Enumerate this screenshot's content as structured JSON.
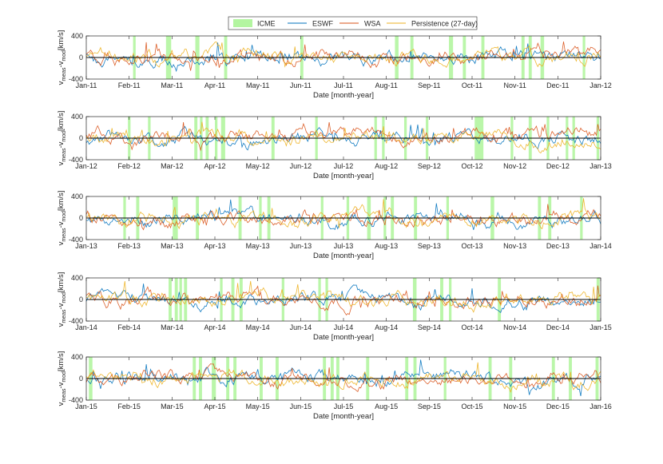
{
  "figure": {
    "legend": {
      "placement": "top-center",
      "entries": [
        {
          "name": "ICME",
          "kind": "band",
          "color": "#b3f5a0"
        },
        {
          "name": "ESWF",
          "kind": "line",
          "color": "#0072bd"
        },
        {
          "name": "WSA",
          "kind": "line",
          "color": "#d95319"
        },
        {
          "name": "Persistence (27-day)",
          "kind": "line",
          "color": "#edb120"
        }
      ]
    }
  },
  "chart_data": [
    {
      "type": "line",
      "title": "",
      "xlabel": "Date [month-year]",
      "ylabel_main": "v",
      "ylabel_sub1": "meas",
      "ylabel_mid": "-v",
      "ylabel_sub2": "mod",
      "ylabel_unit": "[km/s]",
      "ylim": [
        -400,
        400
      ],
      "yticks": [
        "-400",
        "0",
        "400"
      ],
      "xtick_labels": [
        "Jan-11",
        "Feb-11",
        "Mar-11",
        "Apr-11",
        "May-11",
        "Jun-11",
        "Jul-11",
        "Aug-11",
        "Sep-11",
        "Oct-11",
        "Nov-11",
        "Dec-11",
        "Jan-12"
      ],
      "icme_fractions": [
        [
          0.091,
          0.096
        ],
        [
          0.155,
          0.165
        ],
        [
          0.212,
          0.22
        ],
        [
          0.268,
          0.274
        ],
        [
          0.416,
          0.422
        ],
        [
          0.6,
          0.607
        ],
        [
          0.63,
          0.636
        ],
        [
          0.705,
          0.713
        ],
        [
          0.732,
          0.738
        ],
        [
          0.768,
          0.774
        ],
        [
          0.846,
          0.852
        ],
        [
          0.86,
          0.866
        ],
        [
          0.883,
          0.89
        ],
        [
          0.965,
          0.97
        ]
      ],
      "series": [
        {
          "name": "ESWF",
          "seed": 11
        },
        {
          "name": "WSA",
          "seed": 12
        },
        {
          "name": "Persistence (27-day)",
          "seed": 13
        }
      ]
    },
    {
      "type": "line",
      "title": "",
      "xlabel": "Date [month-year]",
      "ylabel_main": "v",
      "ylabel_sub1": "meas",
      "ylabel_mid": "-v",
      "ylabel_sub2": "mod",
      "ylabel_unit": "[km/s]",
      "ylim": [
        -400,
        400
      ],
      "yticks": [
        "-400",
        "0",
        "400"
      ],
      "xtick_labels": [
        "Jan-12",
        "Feb-12",
        "Mar-12",
        "Apr-12",
        "May-12",
        "Jun-12",
        "Jul-12",
        "Aug-12",
        "Sep-12",
        "Oct-12",
        "Nov-12",
        "Dec-12",
        "Jan-13"
      ],
      "icme_fractions": [
        [
          0.081,
          0.086
        ],
        [
          0.12,
          0.125
        ],
        [
          0.21,
          0.216
        ],
        [
          0.221,
          0.226
        ],
        [
          0.232,
          0.238
        ],
        [
          0.25,
          0.255
        ],
        [
          0.262,
          0.27
        ],
        [
          0.36,
          0.366
        ],
        [
          0.445,
          0.45
        ],
        [
          0.56,
          0.565
        ],
        [
          0.575,
          0.58
        ],
        [
          0.618,
          0.623
        ],
        [
          0.66,
          0.665
        ],
        [
          0.755,
          0.772
        ],
        [
          0.825,
          0.83
        ],
        [
          0.86,
          0.866
        ],
        [
          0.895,
          0.9
        ],
        [
          0.932,
          0.937
        ],
        [
          0.945,
          0.95
        ],
        [
          0.992,
          0.997
        ]
      ],
      "series": [
        {
          "name": "ESWF",
          "seed": 21
        },
        {
          "name": "WSA",
          "seed": 22
        },
        {
          "name": "Persistence (27-day)",
          "seed": 23
        }
      ]
    },
    {
      "type": "line",
      "title": "",
      "xlabel": "Date [month-year]",
      "ylabel_main": "v",
      "ylabel_sub1": "meas",
      "ylabel_mid": "-v",
      "ylabel_sub2": "mod",
      "ylabel_unit": "[km/s]",
      "ylim": [
        -400,
        400
      ],
      "yticks": [
        "-400",
        "0",
        "400"
      ],
      "xtick_labels": [
        "Jan-13",
        "Feb-13",
        "Mar-13",
        "Apr-13",
        "May-13",
        "Jun-13",
        "Jul-13",
        "Aug-13",
        "Sep-13",
        "Oct-13",
        "Nov-13",
        "Dec-13",
        "Jan-14"
      ],
      "icme_fractions": [
        [
          0.072,
          0.077
        ],
        [
          0.097,
          0.103
        ],
        [
          0.168,
          0.178
        ],
        [
          0.213,
          0.219
        ],
        [
          0.296,
          0.302
        ],
        [
          0.336,
          0.341
        ],
        [
          0.352,
          0.358
        ],
        [
          0.456,
          0.461
        ],
        [
          0.506,
          0.511
        ],
        [
          0.546,
          0.553
        ],
        [
          0.578,
          0.583
        ],
        [
          0.592,
          0.598
        ],
        [
          0.637,
          0.643
        ],
        [
          0.7,
          0.705
        ],
        [
          0.786,
          0.793
        ],
        [
          0.878,
          0.884
        ],
        [
          0.898,
          0.904
        ],
        [
          0.96,
          0.965
        ]
      ],
      "series": [
        {
          "name": "ESWF",
          "seed": 31
        },
        {
          "name": "WSA",
          "seed": 32
        },
        {
          "name": "Persistence (27-day)",
          "seed": 33
        }
      ]
    },
    {
      "type": "line",
      "title": "",
      "xlabel": "Date [month-year]",
      "ylabel_main": "v",
      "ylabel_sub1": "meas",
      "ylabel_mid": "-v",
      "ylabel_sub2": "mod",
      "ylabel_unit": "[km/s]",
      "ylim": [
        -400,
        400
      ],
      "yticks": [
        "-400",
        "0",
        "400"
      ],
      "xtick_labels": [
        "Jan-14",
        "Feb-14",
        "Mar-14",
        "Apr-14",
        "May-14",
        "Jun-14",
        "Jul-14",
        "Aug-14",
        "Sep-14",
        "Oct-14",
        "Nov-14",
        "Dec-14",
        "Jan-15"
      ],
      "icme_fractions": [
        [
          0.16,
          0.166
        ],
        [
          0.172,
          0.178
        ],
        [
          0.181,
          0.186
        ],
        [
          0.19,
          0.196
        ],
        [
          0.26,
          0.265
        ],
        [
          0.282,
          0.288
        ],
        [
          0.298,
          0.304
        ],
        [
          0.38,
          0.385
        ],
        [
          0.451,
          0.456
        ],
        [
          0.465,
          0.47
        ],
        [
          0.635,
          0.642
        ],
        [
          0.688,
          0.694
        ],
        [
          0.705,
          0.71
        ],
        [
          0.8,
          0.806
        ],
        [
          0.992,
          0.998
        ]
      ],
      "series": [
        {
          "name": "ESWF",
          "seed": 41
        },
        {
          "name": "WSA",
          "seed": 42
        },
        {
          "name": "Persistence (27-day)",
          "seed": 43
        }
      ]
    },
    {
      "type": "line",
      "title": "",
      "xlabel": "Date [month-year]",
      "ylabel_main": "v",
      "ylabel_sub1": "meas",
      "ylabel_mid": "-v",
      "ylabel_sub2": "mod",
      "ylabel_unit": "[km/s]",
      "ylim": [
        -400,
        400
      ],
      "yticks": [
        "-400",
        "0",
        "400"
      ],
      "xtick_labels": [
        "Jan-15",
        "Feb-15",
        "Mar-15",
        "Apr-15",
        "May-15",
        "Jun-15",
        "Jul-15",
        "Aug-15",
        "Sep-15",
        "Oct-15",
        "Nov-15",
        "Dec-15",
        "Jan-16"
      ],
      "icme_fractions": [
        [
          0.005,
          0.012
        ],
        [
          0.207,
          0.213
        ],
        [
          0.219,
          0.225
        ],
        [
          0.244,
          0.252
        ],
        [
          0.272,
          0.278
        ],
        [
          0.286,
          0.292
        ],
        [
          0.337,
          0.343
        ],
        [
          0.368,
          0.374
        ],
        [
          0.46,
          0.466
        ],
        [
          0.475,
          0.481
        ],
        [
          0.486,
          0.492
        ],
        [
          0.544,
          0.55
        ],
        [
          0.62,
          0.626
        ],
        [
          0.636,
          0.642
        ],
        [
          0.695,
          0.7
        ],
        [
          0.782,
          0.788
        ],
        [
          0.822,
          0.828
        ],
        [
          0.905,
          0.911
        ],
        [
          0.938,
          0.944
        ],
        [
          0.99,
          0.996
        ]
      ],
      "series": [
        {
          "name": "ESWF",
          "seed": 51
        },
        {
          "name": "WSA",
          "seed": 52
        },
        {
          "name": "Persistence (27-day)",
          "seed": 53
        }
      ]
    }
  ]
}
